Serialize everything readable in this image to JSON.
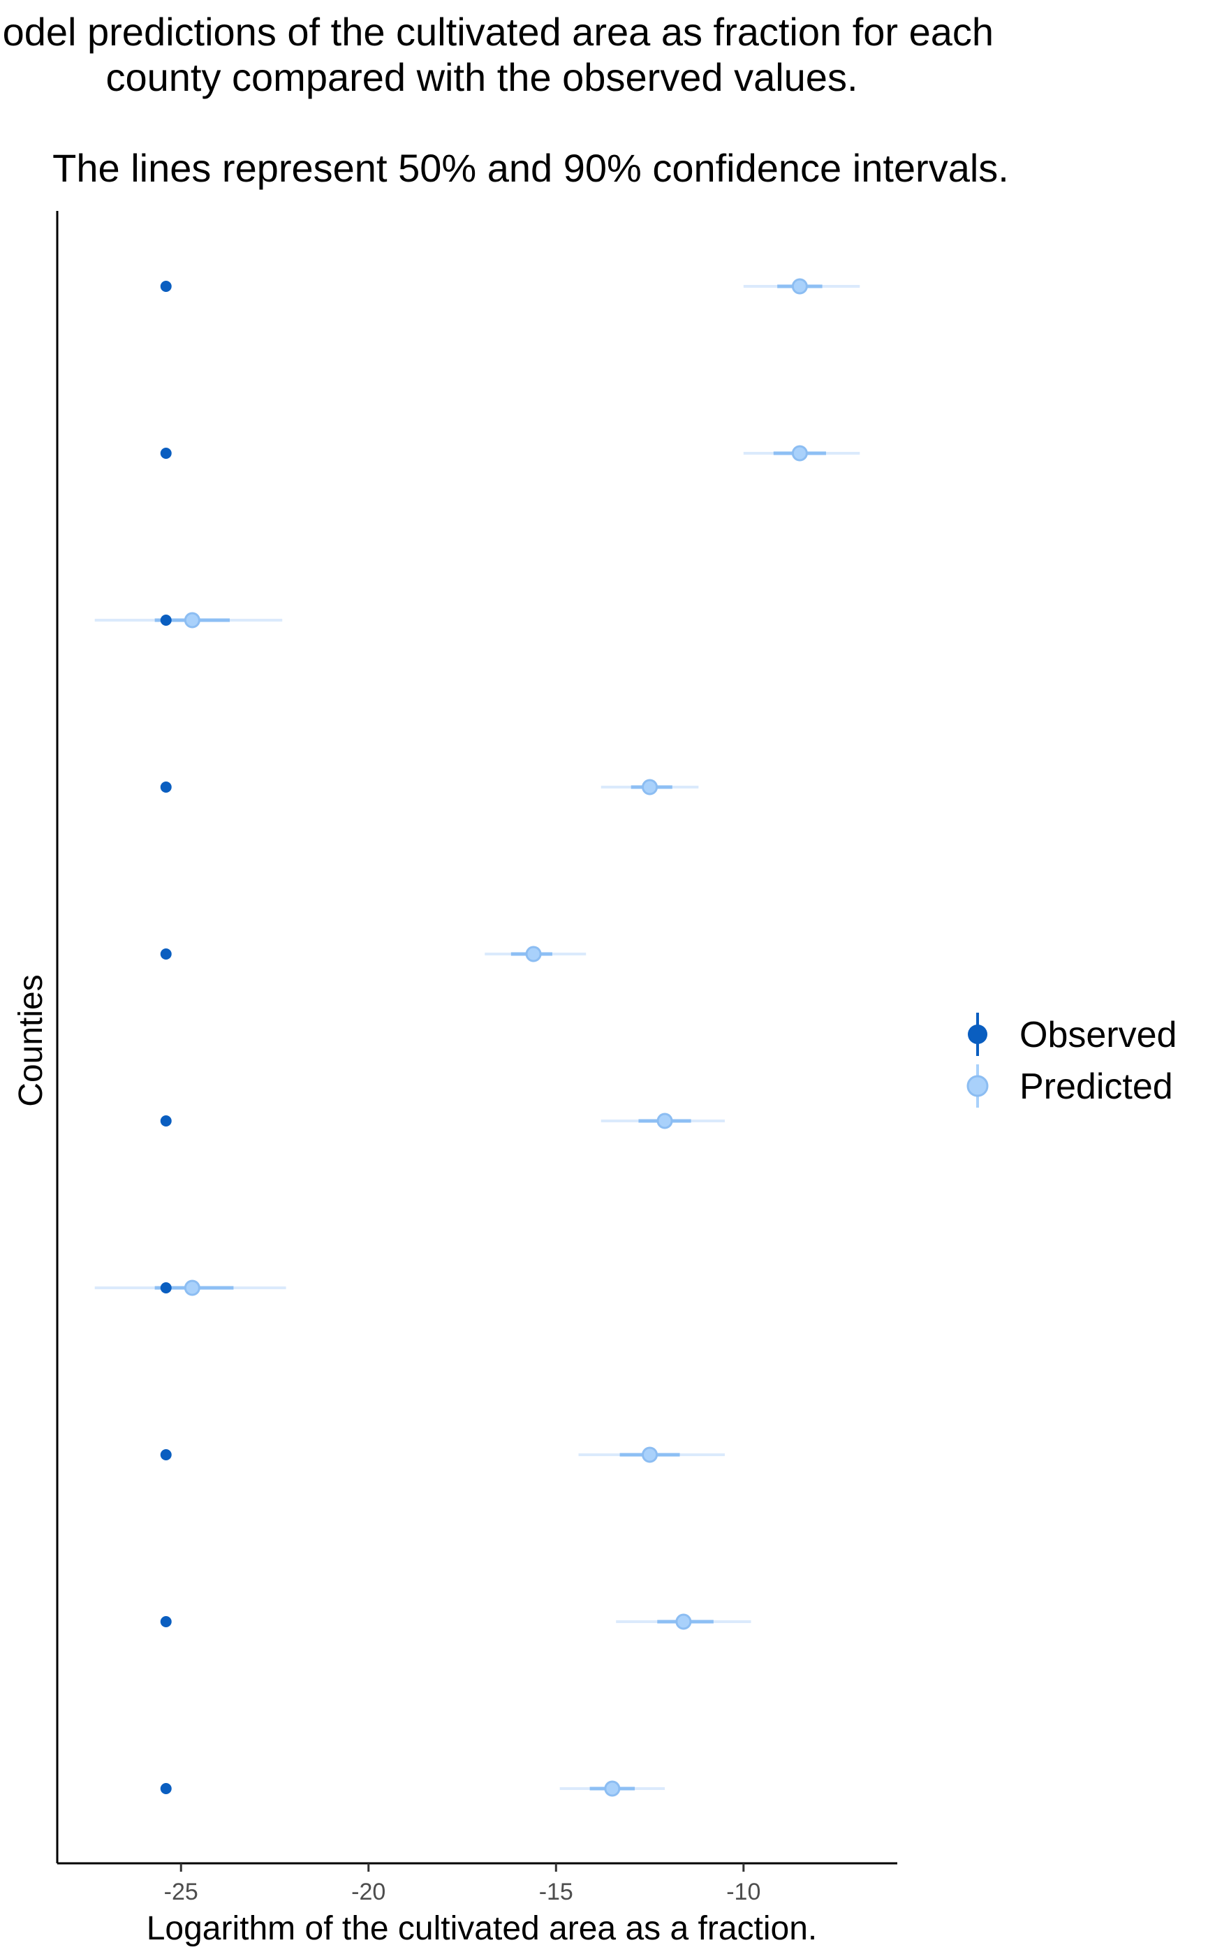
{
  "chart_data": {
    "type": "scatter",
    "title_lines": [
      "Model predictions of the cultivated area as fraction for each",
      "county compared with the observed values."
    ],
    "subtitle": "The lines represent 50% and 90% confidence intervals.",
    "xlabel": "Logarithm of the cultivated area as a fraction.",
    "ylabel": "Counties",
    "xlim": [
      -28.3,
      -5.9
    ],
    "x_ticks": [
      -25,
      -20,
      -15,
      -10
    ],
    "y_tick_labels_shown": false,
    "grid": false,
    "legend_position": "right",
    "colors": {
      "observed": "#0a5ec0",
      "predicted_point": "#a9d1fb",
      "predicted_point_edge": "#8cbdf2",
      "ci50": "#8dbff4",
      "ci90": "#dbeafc",
      "axis": "#000000"
    },
    "series": [
      {
        "name": "Observed",
        "values": [
          -25.4,
          -25.4,
          -25.4,
          -25.4,
          -25.4,
          -25.4,
          -25.4,
          -25.4,
          -25.4,
          -25.4
        ]
      },
      {
        "name": "Predicted",
        "values": [
          -8.5,
          -8.5,
          -24.7,
          -12.5,
          -15.6,
          -12.1,
          -24.7,
          -12.5,
          -11.6,
          -13.5
        ],
        "ci50": [
          [
            -9.1,
            -7.9
          ],
          [
            -9.2,
            -7.8
          ],
          [
            -25.7,
            -23.7
          ],
          [
            -13.0,
            -11.9
          ],
          [
            -16.2,
            -15.1
          ],
          [
            -12.8,
            -11.4
          ],
          [
            -25.7,
            -23.6
          ],
          [
            -13.3,
            -11.7
          ],
          [
            -12.3,
            -10.8
          ],
          [
            -14.1,
            -12.9
          ]
        ],
        "ci90": [
          [
            -10.0,
            -6.9
          ],
          [
            -10.0,
            -6.9
          ],
          [
            -27.3,
            -22.3
          ],
          [
            -13.8,
            -11.2
          ],
          [
            -16.9,
            -14.2
          ],
          [
            -13.8,
            -10.5
          ],
          [
            -27.3,
            -22.2
          ],
          [
            -14.4,
            -10.5
          ],
          [
            -13.4,
            -9.8
          ],
          [
            -14.9,
            -12.1
          ]
        ]
      }
    ]
  }
}
